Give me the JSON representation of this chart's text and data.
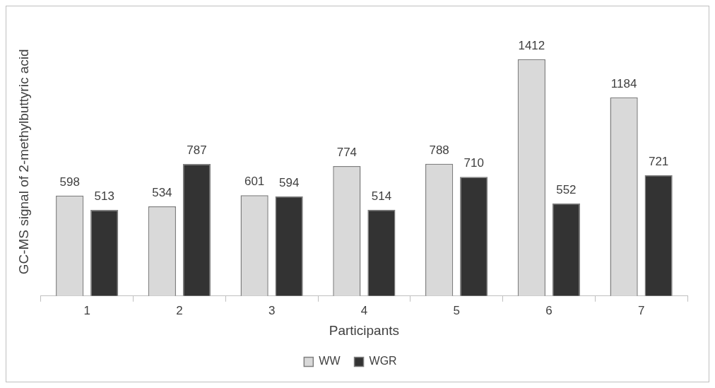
{
  "chart_data": {
    "type": "bar",
    "xlabel": "Participants",
    "ylabel": "GC-MS signal of 2-methylbuttyric acid",
    "categories": [
      "1",
      "2",
      "3",
      "4",
      "5",
      "6",
      "7"
    ],
    "series": [
      {
        "name": "WW",
        "color": "#d9d9d9",
        "values": [
          598,
          534,
          601,
          774,
          788,
          1412,
          1184
        ]
      },
      {
        "name": "WGR",
        "color": "#333333",
        "values": [
          513,
          787,
          594,
          514,
          710,
          552,
          721
        ]
      }
    ],
    "data_labels": true,
    "grid": false,
    "legend": "bottom"
  }
}
